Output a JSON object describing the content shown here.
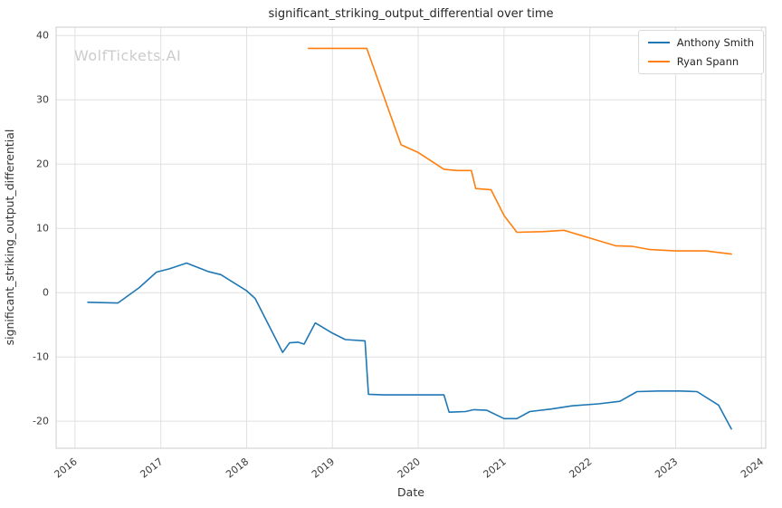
{
  "watermark": "WolfTickets.AI",
  "chart_data": {
    "type": "line",
    "title": "significant_striking_output_differential over time",
    "xlabel": "Date",
    "ylabel": "significant_striking_output_differential",
    "xlim": [
      2015.78,
      2024.05
    ],
    "ylim": [
      -24.2,
      41.3
    ],
    "x_ticks": [
      2016,
      2017,
      2018,
      2019,
      2020,
      2021,
      2022,
      2023,
      2024
    ],
    "y_ticks": [
      -20,
      -10,
      0,
      10,
      20,
      30,
      40
    ],
    "grid": true,
    "legend_position": "upper right",
    "series": [
      {
        "name": "Anthony Smith",
        "color": "#1f77b4",
        "points": [
          [
            2016.15,
            -1.5
          ],
          [
            2016.5,
            -1.6
          ],
          [
            2016.75,
            0.8
          ],
          [
            2016.95,
            3.2
          ],
          [
            2017.1,
            3.7
          ],
          [
            2017.3,
            4.6
          ],
          [
            2017.55,
            3.3
          ],
          [
            2017.7,
            2.8
          ],
          [
            2018.0,
            0.3
          ],
          [
            2018.1,
            -0.9
          ],
          [
            2018.42,
            -9.3
          ],
          [
            2018.5,
            -7.8
          ],
          [
            2018.6,
            -7.7
          ],
          [
            2018.67,
            -8.0
          ],
          [
            2018.8,
            -4.7
          ],
          [
            2019.0,
            -6.3
          ],
          [
            2019.15,
            -7.3
          ],
          [
            2019.38,
            -7.5
          ],
          [
            2019.42,
            -15.8
          ],
          [
            2019.6,
            -15.9
          ],
          [
            2020.0,
            -15.9
          ],
          [
            2020.3,
            -15.9
          ],
          [
            2020.36,
            -18.6
          ],
          [
            2020.55,
            -18.5
          ],
          [
            2020.65,
            -18.2
          ],
          [
            2020.8,
            -18.3
          ],
          [
            2021.0,
            -19.6
          ],
          [
            2021.15,
            -19.6
          ],
          [
            2021.3,
            -18.5
          ],
          [
            2021.55,
            -18.1
          ],
          [
            2021.8,
            -17.6
          ],
          [
            2022.1,
            -17.3
          ],
          [
            2022.35,
            -16.9
          ],
          [
            2022.55,
            -15.4
          ],
          [
            2022.8,
            -15.3
          ],
          [
            2023.05,
            -15.3
          ],
          [
            2023.25,
            -15.4
          ],
          [
            2023.5,
            -17.5
          ],
          [
            2023.65,
            -21.2
          ]
        ]
      },
      {
        "name": "Ryan Spann",
        "color": "#ff7f0e",
        "points": [
          [
            2018.72,
            38.0
          ],
          [
            2019.0,
            38.0
          ],
          [
            2019.2,
            38.0
          ],
          [
            2019.4,
            38.0
          ],
          [
            2019.8,
            23.0
          ],
          [
            2020.0,
            21.8
          ],
          [
            2020.3,
            19.2
          ],
          [
            2020.45,
            19.0
          ],
          [
            2020.62,
            19.0
          ],
          [
            2020.67,
            16.2
          ],
          [
            2020.85,
            16.0
          ],
          [
            2021.0,
            12.0
          ],
          [
            2021.15,
            9.4
          ],
          [
            2021.45,
            9.5
          ],
          [
            2021.7,
            9.7
          ],
          [
            2022.0,
            8.5
          ],
          [
            2022.3,
            7.3
          ],
          [
            2022.5,
            7.2
          ],
          [
            2022.7,
            6.7
          ],
          [
            2023.0,
            6.5
          ],
          [
            2023.35,
            6.5
          ],
          [
            2023.65,
            6.0
          ]
        ]
      }
    ]
  }
}
